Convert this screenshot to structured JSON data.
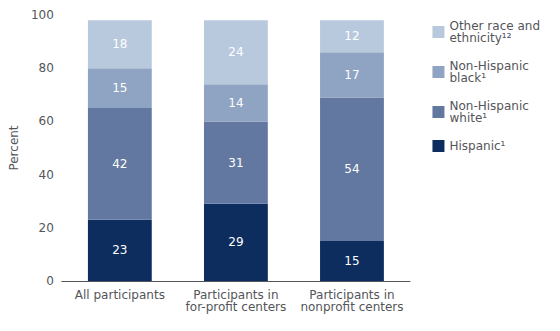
{
  "chart_data": {
    "type": "bar",
    "stacked": true,
    "data_labels": true,
    "grid": false,
    "legend": "right",
    "categories": [
      "All participants",
      "Participants in\nfor-profit centers",
      "Participants in\nnonprofit centers"
    ],
    "series": [
      {
        "name": "Hispanic¹",
        "color": "#0d2d5e",
        "values": [
          23,
          29,
          15
        ]
      },
      {
        "name": "Non-Hispanic\nwhite¹",
        "color": "#6278a0",
        "values": [
          42,
          31,
          54
        ]
      },
      {
        "name": "Non-Hispanic\nblack¹",
        "color": "#8fa3c3",
        "values": [
          15,
          14,
          17
        ]
      },
      {
        "name": "Other race and\nethnicity¹²",
        "color": "#b8c9de",
        "values": [
          18,
          24,
          12
        ]
      }
    ],
    "ylabel": "Percent",
    "ylim": [
      0,
      100
    ],
    "yticks": [
      0,
      20,
      40,
      60,
      80,
      100
    ]
  }
}
